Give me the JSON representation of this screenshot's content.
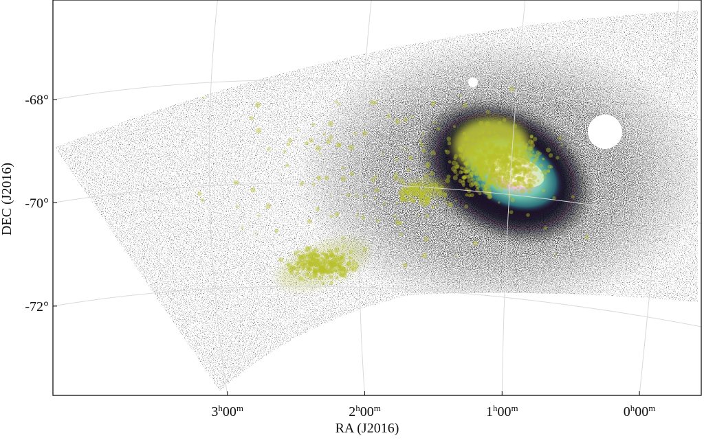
{
  "chart_data": {
    "type": "sky-map",
    "xlabel": "RA (J2016)",
    "ylabel": "DEC (J2016)",
    "xlim": [
      4.27,
      -0.45
    ],
    "ylim": [
      -73.73,
      -66.07
    ],
    "xticks": [
      {
        "value": 3,
        "label": "3h00m"
      },
      {
        "value": 2,
        "label": "2h00m"
      },
      {
        "value": 1,
        "label": "1h00m"
      },
      {
        "value": 0,
        "label": "0h00m"
      }
    ],
    "yticks": [
      {
        "value": -68,
        "label": "-68°"
      },
      {
        "value": -70,
        "label": "-70°"
      },
      {
        "value": -72,
        "label": "-72°"
      }
    ],
    "grid": true
  }
}
